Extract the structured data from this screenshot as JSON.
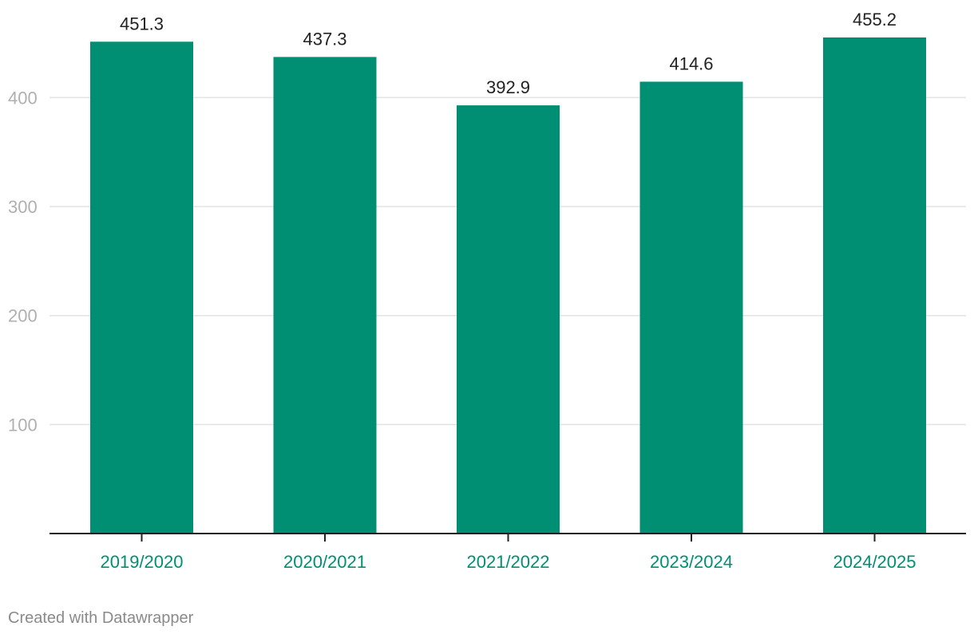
{
  "chart_data": {
    "type": "bar",
    "categories": [
      "2019/2020",
      "2020/2021",
      "2021/2022",
      "2023/2024",
      "2024/2025"
    ],
    "values": [
      451.3,
      437.3,
      392.9,
      414.6,
      455.2
    ],
    "value_labels": [
      "451.3",
      "437.3",
      "392.9",
      "414.6",
      "455.2"
    ],
    "y_ticks": [
      100,
      200,
      300,
      400
    ],
    "ylim": [
      0,
      455.2
    ],
    "grid": true,
    "bar_color": "#008f73",
    "category_label_color": "#008f73",
    "title": "",
    "xlabel": "",
    "ylabel": ""
  },
  "footer": {
    "credit": "Created with Datawrapper"
  }
}
